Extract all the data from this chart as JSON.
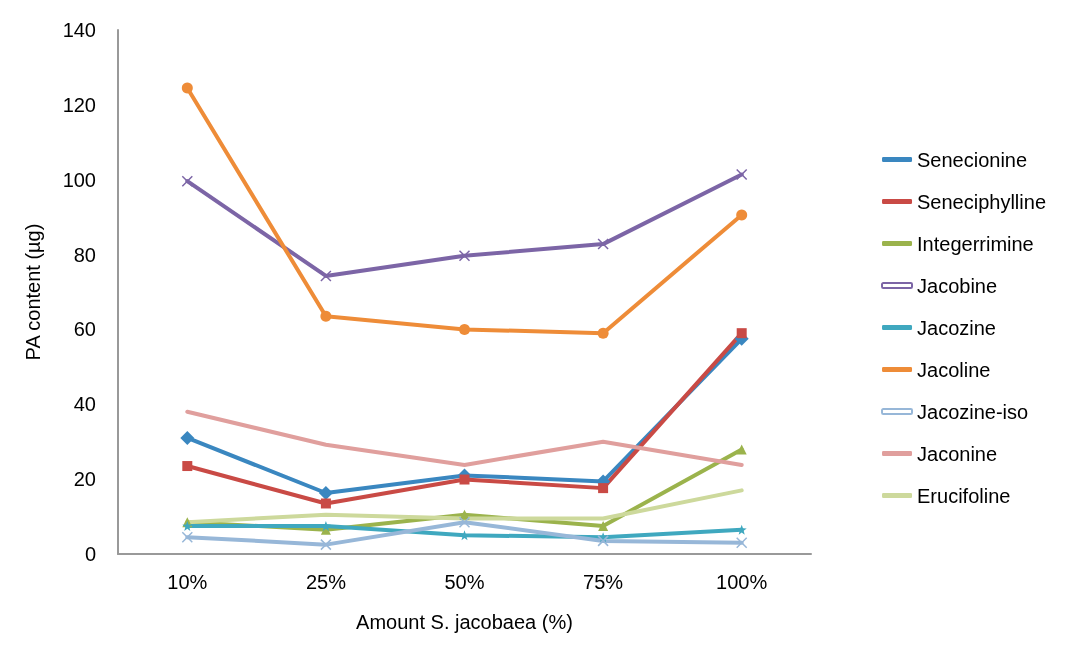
{
  "chart_data": {
    "type": "line",
    "xlabel": "Amount S. jacobaea (%)",
    "ylabel": "PA content (µg)",
    "categories": [
      "10%",
      "25%",
      "50%",
      "75%",
      "100%"
    ],
    "ylim": [
      0,
      140
    ],
    "yticks": [
      0,
      20,
      40,
      60,
      80,
      100,
      120,
      140
    ],
    "grid": false,
    "legend": "right",
    "line_style": "solid",
    "series": [
      {
        "name": "Senecionine",
        "color": "#3a87c0",
        "marker": "diamond",
        "values": [
          31,
          16.3,
          21,
          19.4,
          57.5
        ]
      },
      {
        "name": "Seneciphylline",
        "color": "#c94a45",
        "marker": "square",
        "values": [
          23.5,
          13.5,
          19.9,
          17.6,
          59
        ]
      },
      {
        "name": "Integerrimine",
        "color": "#9bb34c",
        "marker": "triangle",
        "values": [
          8.5,
          6.5,
          10.5,
          7.5,
          27.9
        ]
      },
      {
        "name": "Jacobine",
        "color": "#7c65a6",
        "marker": "cross",
        "values": [
          99.6,
          74.3,
          79.7,
          82.8,
          101.4
        ]
      },
      {
        "name": "Jacozine",
        "color": "#3fa8bf",
        "marker": "star",
        "values": [
          7.5,
          7.5,
          5,
          4.5,
          6.5
        ]
      },
      {
        "name": "Jacoline",
        "color": "#ee8c38",
        "marker": "circle",
        "values": [
          124.5,
          63.5,
          60,
          59,
          90.6
        ]
      },
      {
        "name": "Jacozine-iso",
        "color": "#97b7d8",
        "marker": "cross",
        "values": [
          4.5,
          2.5,
          8.5,
          3.5,
          3
        ]
      },
      {
        "name": "Jaconine",
        "color": "#e09f9d",
        "marker": "none",
        "values": [
          38,
          29.2,
          23.8,
          30,
          23.8
        ]
      },
      {
        "name": "Erucifoline",
        "color": "#cdd99c",
        "marker": "none",
        "values": [
          8.5,
          10.5,
          9.5,
          9.5,
          17
        ]
      }
    ]
  }
}
